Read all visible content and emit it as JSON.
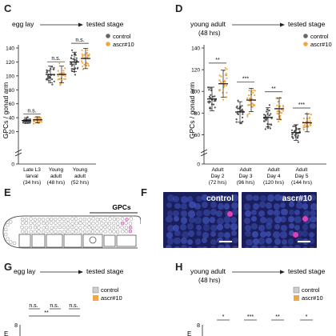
{
  "panels": {
    "C": {
      "letter": "C",
      "timeline": {
        "start": "egg lay",
        "end": "tested stage"
      },
      "legend": [
        {
          "label": "control",
          "color": "#666666"
        },
        {
          "label": "ascr#10",
          "color": "#f4a640"
        }
      ],
      "y_label": "GPCs / gonad arm"
    },
    "D": {
      "letter": "D",
      "timeline": {
        "start": "young adult",
        "start_sub": "(48 hrs)",
        "end": "tested stage"
      },
      "legend": [
        {
          "label": "control",
          "color": "#666666"
        },
        {
          "label": "ascr#10",
          "color": "#f4a640"
        }
      ],
      "y_label": "GPCs / gonad arm"
    },
    "E": {
      "letter": "E",
      "label": "GPCs"
    },
    "F": {
      "letter": "F",
      "images": [
        {
          "label": "control"
        },
        {
          "label": "ascr#10"
        }
      ]
    },
    "G": {
      "letter": "G",
      "timeline": {
        "start": "egg lay",
        "end": "tested stage"
      },
      "legend": [
        {
          "label": "control",
          "color": "#cfcfcf"
        },
        {
          "label": "ascr#10",
          "color": "#f4a640"
        }
      ],
      "sig": [
        "n.s.",
        "n.s.",
        "n.s.",
        "**"
      ],
      "ytick": "8",
      "ytick2": "E"
    },
    "H": {
      "letter": "H",
      "timeline": {
        "start": "young adult",
        "start_sub": "(48 hrs)",
        "end": "tested stage"
      },
      "legend": [
        {
          "label": "control",
          "color": "#cfcfcf"
        },
        {
          "label": "ascr#10",
          "color": "#f4a640"
        }
      ],
      "sig": [
        "*",
        "***",
        "**",
        "*"
      ],
      "ytick": "8",
      "ytick2": "E"
    }
  },
  "chart_data": [
    {
      "panel": "C",
      "type": "scatter",
      "categories": [
        [
          "Late L3",
          "larval",
          "(34 hrs)"
        ],
        [
          "Young",
          "adult",
          "(48 hrs)"
        ],
        [
          "Young",
          "adult",
          "(52 hrs)"
        ]
      ],
      "series": [
        {
          "name": "control",
          "values": [
            36,
            102,
            120
          ]
        },
        {
          "name": "ascr#10",
          "values": [
            37,
            102,
            125
          ]
        }
      ],
      "significance": [
        "n.s.",
        "n.s.",
        "n.s."
      ],
      "ylabel": "GPCs / gonad arm",
      "ylim": [
        0,
        140
      ],
      "yticks": [
        0,
        20,
        40,
        60,
        80,
        100,
        120,
        140
      ],
      "axis_break": true
    },
    {
      "panel": "D",
      "type": "scatter",
      "categories": [
        [
          "Adult",
          "Day 2",
          "(72 hrs)"
        ],
        [
          "Adult",
          "Day 3",
          "(96 hrs)"
        ],
        [
          "Adult",
          "Day 4",
          "(120 hrs)"
        ],
        [
          "Adult",
          "Day 5",
          "(144 hrs)"
        ]
      ],
      "series": [
        {
          "name": "control",
          "values": [
            93,
            81,
            76,
            62
          ]
        },
        {
          "name": "ascr#10",
          "values": [
            107,
            92,
            84,
            71
          ]
        }
      ],
      "significance": [
        "**",
        "***",
        "**",
        "***"
      ],
      "ylabel": "GPCs / gonad arm",
      "ylim": [
        0,
        140
      ],
      "yticks": [
        0,
        60,
        80,
        100,
        120,
        140
      ],
      "axis_break": true
    }
  ]
}
